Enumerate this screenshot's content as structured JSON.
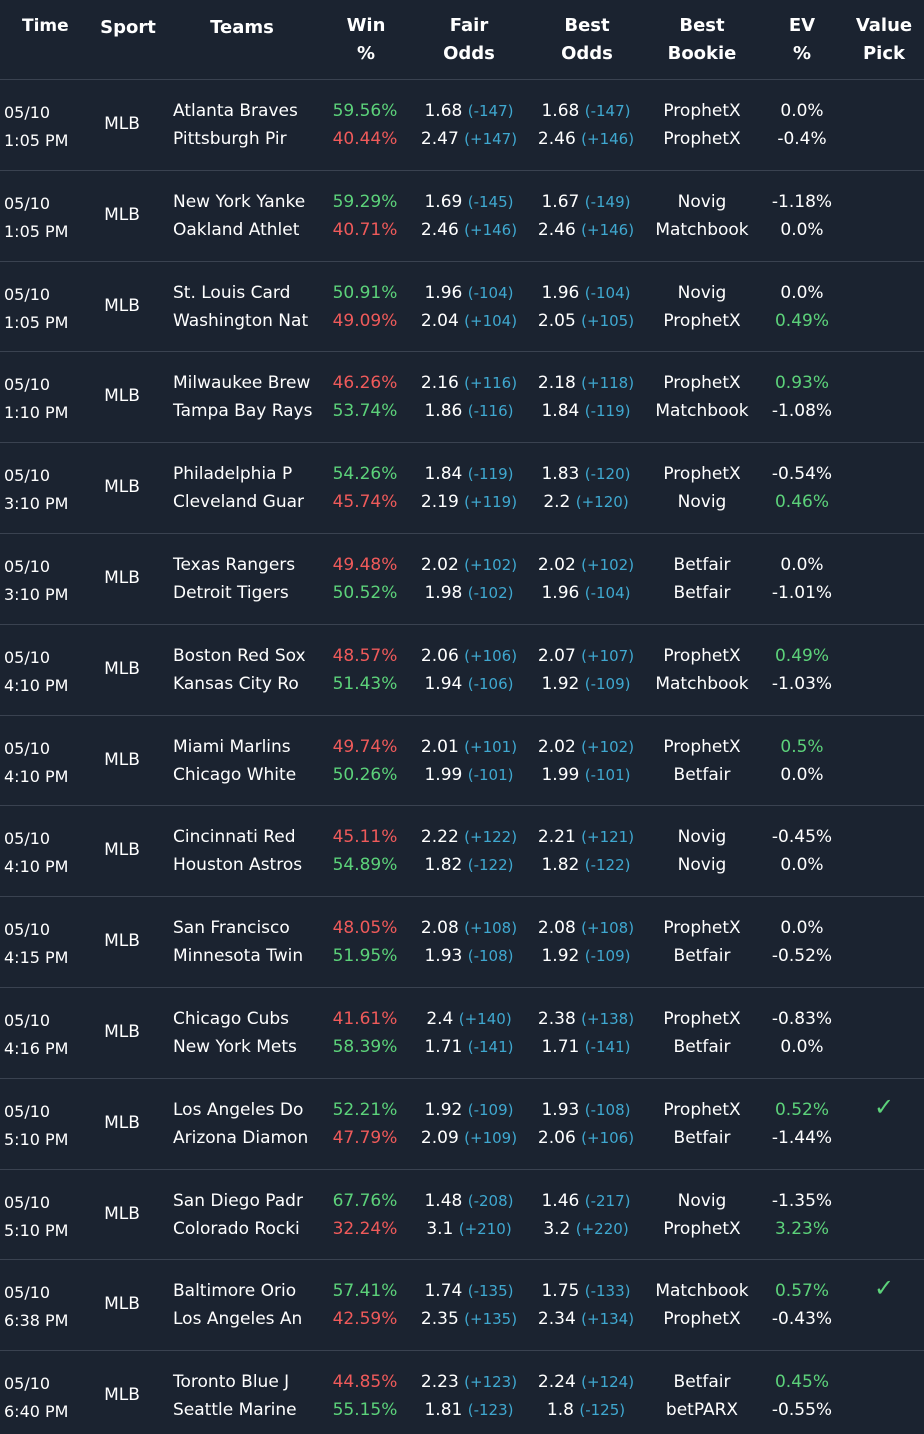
{
  "headers": {
    "time": "Time",
    "sport": "Sport",
    "teams": "Teams",
    "win_1": "Win",
    "win_2": "%",
    "fair_1": "Fair",
    "fair_2": "Odds",
    "best_1": "Best",
    "best_2": "Odds",
    "bookie_1": "Best",
    "bookie_2": "Bookie",
    "ev_1": "EV",
    "ev_2": "%",
    "pick_1": "Value",
    "pick_2": "Pick"
  },
  "colors": {
    "background": "#1b2330",
    "positive": "#5cd27a",
    "negative": "#ef5a5a",
    "american_odds": "#3fa8d0",
    "divider": "#3a4250"
  },
  "rows": [
    {
      "date": "05/10",
      "time": "1:05 PM",
      "sport": "MLB",
      "team1": "Atlanta Braves",
      "team2": "Pittsburgh Pir",
      "win1": "59.56%",
      "win2": "40.44%",
      "fair1": "1.68",
      "fair1am": "(-147)",
      "fair2": "2.47",
      "fair2am": "(+147)",
      "best1": "1.68",
      "best1am": "(-147)",
      "best2": "2.46",
      "best2am": "(+146)",
      "bookie1": "ProphetX",
      "bookie2": "ProphetX",
      "ev1": "0.0%",
      "ev2": "-0.4%",
      "pick1": "",
      "pick2": ""
    },
    {
      "date": "05/10",
      "time": "1:05 PM",
      "sport": "MLB",
      "team1": "New York Yanke",
      "team2": "Oakland Athlet",
      "win1": "59.29%",
      "win2": "40.71%",
      "fair1": "1.69",
      "fair1am": "(-145)",
      "fair2": "2.46",
      "fair2am": "(+146)",
      "best1": "1.67",
      "best1am": "(-149)",
      "best2": "2.46",
      "best2am": "(+146)",
      "bookie1": "Novig",
      "bookie2": "Matchbook",
      "ev1": "-1.18%",
      "ev2": "0.0%",
      "pick1": "",
      "pick2": ""
    },
    {
      "date": "05/10",
      "time": "1:05 PM",
      "sport": "MLB",
      "team1": "St. Louis Card",
      "team2": "Washington Nat",
      "win1": "50.91%",
      "win2": "49.09%",
      "fair1": "1.96",
      "fair1am": "(-104)",
      "fair2": "2.04",
      "fair2am": "(+104)",
      "best1": "1.96",
      "best1am": "(-104)",
      "best2": "2.05",
      "best2am": "(+105)",
      "bookie1": "Novig",
      "bookie2": "ProphetX",
      "ev1": "0.0%",
      "ev2": "0.49%",
      "pick1": "",
      "pick2": ""
    },
    {
      "date": "05/10",
      "time": "1:10 PM",
      "sport": "MLB",
      "team1": "Milwaukee Brew",
      "team2": "Tampa Bay Rays",
      "win1": "46.26%",
      "win2": "53.74%",
      "fair1": "2.16",
      "fair1am": "(+116)",
      "fair2": "1.86",
      "fair2am": "(-116)",
      "best1": "2.18",
      "best1am": "(+118)",
      "best2": "1.84",
      "best2am": "(-119)",
      "bookie1": "ProphetX",
      "bookie2": "Matchbook",
      "ev1": "0.93%",
      "ev2": "-1.08%",
      "pick1": "",
      "pick2": ""
    },
    {
      "date": "05/10",
      "time": "3:10 PM",
      "sport": "MLB",
      "team1": "Philadelphia P",
      "team2": "Cleveland Guar",
      "win1": "54.26%",
      "win2": "45.74%",
      "fair1": "1.84",
      "fair1am": "(-119)",
      "fair2": "2.19",
      "fair2am": "(+119)",
      "best1": "1.83",
      "best1am": "(-120)",
      "best2": "2.2",
      "best2am": "(+120)",
      "bookie1": "ProphetX",
      "bookie2": "Novig",
      "ev1": "-0.54%",
      "ev2": "0.46%",
      "pick1": "",
      "pick2": ""
    },
    {
      "date": "05/10",
      "time": "3:10 PM",
      "sport": "MLB",
      "team1": "Texas Rangers",
      "team2": "Detroit Tigers",
      "win1": "49.48%",
      "win2": "50.52%",
      "fair1": "2.02",
      "fair1am": "(+102)",
      "fair2": "1.98",
      "fair2am": "(-102)",
      "best1": "2.02",
      "best1am": "(+102)",
      "best2": "1.96",
      "best2am": "(-104)",
      "bookie1": "Betfair",
      "bookie2": "Betfair",
      "ev1": "0.0%",
      "ev2": "-1.01%",
      "pick1": "",
      "pick2": ""
    },
    {
      "date": "05/10",
      "time": "4:10 PM",
      "sport": "MLB",
      "team1": "Boston Red Sox",
      "team2": "Kansas City Ro",
      "win1": "48.57%",
      "win2": "51.43%",
      "fair1": "2.06",
      "fair1am": "(+106)",
      "fair2": "1.94",
      "fair2am": "(-106)",
      "best1": "2.07",
      "best1am": "(+107)",
      "best2": "1.92",
      "best2am": "(-109)",
      "bookie1": "ProphetX",
      "bookie2": "Matchbook",
      "ev1": "0.49%",
      "ev2": "-1.03%",
      "pick1": "",
      "pick2": ""
    },
    {
      "date": "05/10",
      "time": "4:10 PM",
      "sport": "MLB",
      "team1": "Miami Marlins",
      "team2": "Chicago White",
      "win1": "49.74%",
      "win2": "50.26%",
      "fair1": "2.01",
      "fair1am": "(+101)",
      "fair2": "1.99",
      "fair2am": "(-101)",
      "best1": "2.02",
      "best1am": "(+102)",
      "best2": "1.99",
      "best2am": "(-101)",
      "bookie1": "ProphetX",
      "bookie2": "Betfair",
      "ev1": "0.5%",
      "ev2": "0.0%",
      "pick1": "",
      "pick2": ""
    },
    {
      "date": "05/10",
      "time": "4:10 PM",
      "sport": "MLB",
      "team1": "Cincinnati Red",
      "team2": "Houston Astros",
      "win1": "45.11%",
      "win2": "54.89%",
      "fair1": "2.22",
      "fair1am": "(+122)",
      "fair2": "1.82",
      "fair2am": "(-122)",
      "best1": "2.21",
      "best1am": "(+121)",
      "best2": "1.82",
      "best2am": "(-122)",
      "bookie1": "Novig",
      "bookie2": "Novig",
      "ev1": "-0.45%",
      "ev2": "0.0%",
      "pick1": "",
      "pick2": ""
    },
    {
      "date": "05/10",
      "time": "4:15 PM",
      "sport": "MLB",
      "team1": "San Francisco",
      "team2": "Minnesota Twin",
      "win1": "48.05%",
      "win2": "51.95%",
      "fair1": "2.08",
      "fair1am": "(+108)",
      "fair2": "1.93",
      "fair2am": "(-108)",
      "best1": "2.08",
      "best1am": "(+108)",
      "best2": "1.92",
      "best2am": "(-109)",
      "bookie1": "ProphetX",
      "bookie2": "Betfair",
      "ev1": "0.0%",
      "ev2": "-0.52%",
      "pick1": "",
      "pick2": ""
    },
    {
      "date": "05/10",
      "time": "4:16 PM",
      "sport": "MLB",
      "team1": "Chicago Cubs",
      "team2": "New York Mets",
      "win1": "41.61%",
      "win2": "58.39%",
      "fair1": "2.4",
      "fair1am": "(+140)",
      "fair2": "1.71",
      "fair2am": "(-141)",
      "best1": "2.38",
      "best1am": "(+138)",
      "best2": "1.71",
      "best2am": "(-141)",
      "bookie1": "ProphetX",
      "bookie2": "Betfair",
      "ev1": "-0.83%",
      "ev2": "0.0%",
      "pick1": "",
      "pick2": ""
    },
    {
      "date": "05/10",
      "time": "5:10 PM",
      "sport": "MLB",
      "team1": "Los Angeles Do",
      "team2": "Arizona Diamon",
      "win1": "52.21%",
      "win2": "47.79%",
      "fair1": "1.92",
      "fair1am": "(-109)",
      "fair2": "2.09",
      "fair2am": "(+109)",
      "best1": "1.93",
      "best1am": "(-108)",
      "best2": "2.06",
      "best2am": "(+106)",
      "bookie1": "ProphetX",
      "bookie2": "Betfair",
      "ev1": "0.52%",
      "ev2": "-1.44%",
      "pick1": "✓",
      "pick2": ""
    },
    {
      "date": "05/10",
      "time": "5:10 PM",
      "sport": "MLB",
      "team1": "San Diego Padr",
      "team2": "Colorado Rocki",
      "win1": "67.76%",
      "win2": "32.24%",
      "fair1": "1.48",
      "fair1am": "(-208)",
      "fair2": "3.1",
      "fair2am": "(+210)",
      "best1": "1.46",
      "best1am": "(-217)",
      "best2": "3.2",
      "best2am": "(+220)",
      "bookie1": "Novig",
      "bookie2": "ProphetX",
      "ev1": "-1.35%",
      "ev2": "3.23%",
      "pick1": "",
      "pick2": ""
    },
    {
      "date": "05/10",
      "time": "6:38 PM",
      "sport": "MLB",
      "team1": "Baltimore Orio",
      "team2": "Los Angeles An",
      "win1": "57.41%",
      "win2": "42.59%",
      "fair1": "1.74",
      "fair1am": "(-135)",
      "fair2": "2.35",
      "fair2am": "(+135)",
      "best1": "1.75",
      "best1am": "(-133)",
      "best2": "2.34",
      "best2am": "(+134)",
      "bookie1": "Matchbook",
      "bookie2": "ProphetX",
      "ev1": "0.57%",
      "ev2": "-0.43%",
      "pick1": "✓",
      "pick2": ""
    },
    {
      "date": "05/10",
      "time": "6:40 PM",
      "sport": "MLB",
      "team1": "Toronto Blue J",
      "team2": "Seattle Marine",
      "win1": "44.85%",
      "win2": "55.15%",
      "fair1": "2.23",
      "fair1am": "(+123)",
      "fair2": "1.81",
      "fair2am": "(-123)",
      "best1": "2.24",
      "best1am": "(+124)",
      "best2": "1.8",
      "best2am": "(-125)",
      "bookie1": "Betfair",
      "bookie2": "betPARX",
      "ev1": "0.45%",
      "ev2": "-0.55%",
      "pick1": "",
      "pick2": ""
    }
  ]
}
